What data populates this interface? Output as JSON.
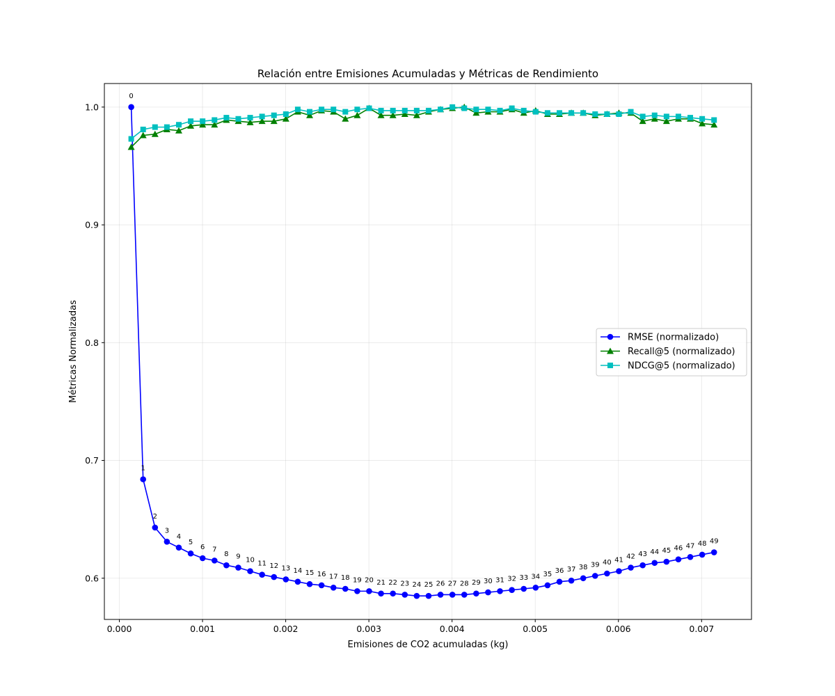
{
  "chart_data": {
    "type": "line",
    "title": "Relación entre Emisiones Acumuladas y Métricas de Rendimiento",
    "xlabel": "Emisiones de CO2 acumuladas (kg)",
    "ylabel": "Métricas Normalizadas",
    "xlim": [
      -0.00018,
      0.0076
    ],
    "ylim": [
      0.565,
      1.02
    ],
    "xticks": [
      {
        "value": 0.0,
        "label": "0.000"
      },
      {
        "value": 0.001,
        "label": "0.001"
      },
      {
        "value": 0.002,
        "label": "0.002"
      },
      {
        "value": 0.003,
        "label": "0.003"
      },
      {
        "value": 0.004,
        "label": "0.004"
      },
      {
        "value": 0.005,
        "label": "0.005"
      },
      {
        "value": 0.006,
        "label": "0.006"
      },
      {
        "value": 0.007,
        "label": "0.007"
      }
    ],
    "yticks": [
      {
        "value": 0.6,
        "label": "0.6"
      },
      {
        "value": 0.7,
        "label": "0.7"
      },
      {
        "value": 0.8,
        "label": "0.8"
      },
      {
        "value": 0.9,
        "label": "0.9"
      },
      {
        "value": 1.0,
        "label": "1.0"
      }
    ],
    "grid": true,
    "legend_position": "center-right",
    "point_labels": [
      "0",
      "1",
      "2",
      "3",
      "4",
      "5",
      "6",
      "7",
      "8",
      "9",
      "10",
      "11",
      "12",
      "13",
      "14",
      "15",
      "16",
      "17",
      "18",
      "19",
      "20",
      "21",
      "22",
      "23",
      "24",
      "25",
      "26",
      "27",
      "28",
      "29",
      "30",
      "31",
      "32",
      "33",
      "34",
      "35",
      "36",
      "37",
      "38",
      "39",
      "40",
      "41",
      "42",
      "43",
      "44",
      "45",
      "46",
      "47",
      "48",
      "49"
    ],
    "x": [
      0.000143,
      0.000286,
      0.000429,
      0.000572,
      0.000715,
      0.000858,
      0.001001,
      0.001144,
      0.001287,
      0.00143,
      0.001573,
      0.001716,
      0.001859,
      0.002002,
      0.002145,
      0.002288,
      0.002431,
      0.002574,
      0.002717,
      0.00286,
      0.003003,
      0.003146,
      0.003289,
      0.003432,
      0.003575,
      0.003718,
      0.003861,
      0.004004,
      0.004147,
      0.00429,
      0.004433,
      0.004576,
      0.004719,
      0.004862,
      0.005005,
      0.005148,
      0.005291,
      0.005434,
      0.005577,
      0.00572,
      0.005863,
      0.006006,
      0.006149,
      0.006292,
      0.006435,
      0.006578,
      0.006721,
      0.006864,
      0.007007,
      0.00715
    ],
    "series": [
      {
        "name": "RMSE (normalizado)",
        "color": "#0000ff",
        "marker": "circle",
        "values": [
          1.0,
          0.684,
          0.643,
          0.631,
          0.626,
          0.621,
          0.617,
          0.615,
          0.611,
          0.609,
          0.606,
          0.603,
          0.601,
          0.599,
          0.597,
          0.595,
          0.594,
          0.592,
          0.591,
          0.589,
          0.589,
          0.587,
          0.587,
          0.586,
          0.585,
          0.585,
          0.586,
          0.586,
          0.586,
          0.587,
          0.588,
          0.589,
          0.59,
          0.591,
          0.592,
          0.594,
          0.597,
          0.598,
          0.6,
          0.602,
          0.604,
          0.606,
          0.609,
          0.611,
          0.613,
          0.614,
          0.616,
          0.618,
          0.62,
          0.622
        ]
      },
      {
        "name": "Recall@5 (normalizado)",
        "color": "#008000",
        "marker": "triangle",
        "values": [
          0.966,
          0.976,
          0.977,
          0.981,
          0.98,
          0.984,
          0.985,
          0.985,
          0.989,
          0.988,
          0.987,
          0.988,
          0.988,
          0.99,
          0.996,
          0.993,
          0.997,
          0.996,
          0.99,
          0.993,
          0.999,
          0.993,
          0.993,
          0.994,
          0.993,
          0.996,
          0.998,
          0.999,
          1.0,
          0.995,
          0.996,
          0.996,
          0.998,
          0.995,
          0.997,
          0.994,
          0.994,
          0.995,
          0.995,
          0.993,
          0.994,
          0.995,
          0.995,
          0.988,
          0.99,
          0.988,
          0.99,
          0.99,
          0.986,
          0.985
        ]
      },
      {
        "name": "NDCG@5 (normalizado)",
        "color": "#00bfbf",
        "marker": "square",
        "values": [
          0.973,
          0.981,
          0.983,
          0.983,
          0.985,
          0.988,
          0.988,
          0.989,
          0.991,
          0.99,
          0.991,
          0.992,
          0.993,
          0.994,
          0.998,
          0.996,
          0.998,
          0.998,
          0.996,
          0.998,
          0.999,
          0.997,
          0.997,
          0.997,
          0.997,
          0.997,
          0.998,
          1.0,
          0.999,
          0.998,
          0.998,
          0.997,
          0.999,
          0.997,
          0.996,
          0.995,
          0.995,
          0.995,
          0.995,
          0.994,
          0.994,
          0.994,
          0.996,
          0.992,
          0.993,
          0.992,
          0.992,
          0.991,
          0.99,
          0.989
        ]
      }
    ]
  }
}
